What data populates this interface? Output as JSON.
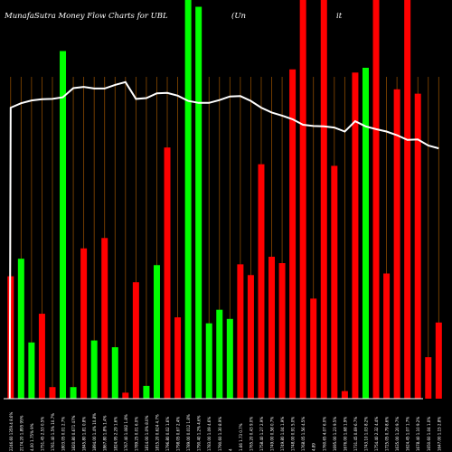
{
  "header": {
    "title": "MunafaSutra  Money Flow  Charts for UBL",
    "subtitle": "(Un",
    "suffix": "it"
  },
  "colors": {
    "background": "#000000",
    "up": "#00ff00",
    "down": "#ff0000",
    "gridline": "#8a4a00",
    "line": "#ffffff",
    "axis": "#ffffff",
    "text": "#ffffff"
  },
  "chart_data": {
    "type": "bar",
    "title": "MunafaSutra  Money Flow  Charts for UBL",
    "ylim": [
      0,
      100
    ],
    "grid": true,
    "legend": "none",
    "categories": [
      "2246.60 1359.4 8.6%",
      "2174.20 1.895 95%",
      "4.00 1.75% 9%",
      "1751.45 2.53 0.5%",
      "1761.40 1.5% 10.7%",
      "1803.05 0.01 2.7%",
      "1820.80 0.671 47%",
      "1845.80 1.81 0.8%",
      "1894.00 1.4% 10.8%",
      "1867.80 1.8% 1.4%",
      "1824.95 2.29 1.6%",
      "1767.40 1.082 1.8%",
      "1789.25 0.01 6.0%",
      "1814.00 1.0% 8.0%",
      "1815.20 0.624 4.7%",
      "1796.80 0.02 1.6%",
      "1798.05 0.67 2.4%",
      "1789.00 0.012 1.8%",
      "1790.40 1.2% 4.6%",
      "1783.00 1.09 4.6%",
      "1790.60 1.30 8.9%",
      "4",
      "1.66 1.73 0.7%",
      "1765.20 0.43 9.0%",
      "1758.40 1.27 2.9%",
      "1749.00 0.58 0.7%",
      "1749.80 1.04 1.9%",
      "1748.00 0.91 5.0%",
      "1768.05 1.56 4.5%",
      "4.89",
      "1760.65 4.07 6.0%",
      "1695.00 1.23 9.5%",
      "1676.00 1.68 1.9%",
      "1731.45 0.69 6.7%",
      "1743.10 1.03 8.2%",
      "1754.40 2.32 4.4%",
      "1725.05 0.79 8.6%",
      "1635.00 1.20 9.7%",
      "1624.45 1.07 1.7%",
      "1678.40 1.10 9.2%",
      "1650.60 1.04 1.0%",
      "1647.00 1.15 2.8%"
    ],
    "series": [
      {
        "colors": [
          "red",
          "green",
          "green",
          "red",
          "red",
          "green",
          "green",
          "red",
          "green",
          "red",
          "green",
          "red",
          "red",
          "green",
          "green",
          "red",
          "red",
          "green",
          "green",
          "green",
          "green",
          "green",
          "red",
          "red",
          "red",
          "red",
          "red",
          "red",
          "red",
          "red",
          "red",
          "red",
          "red",
          "red",
          "green",
          "red",
          "red",
          "red",
          "red",
          "red",
          "red",
          "red"
        ],
        "values": [
          30.7,
          35.1,
          14.1,
          21.3,
          2.9,
          87.2,
          2.9,
          37.7,
          14.6,
          40.3,
          12.9,
          1.5,
          29.2,
          3.2,
          33.5,
          63.0,
          20.4,
          100,
          98.3,
          18.9,
          22.3,
          20.0,
          33.7,
          31.0,
          58.8,
          35.6,
          34.0,
          82.6,
          100,
          25.1,
          100,
          58.4,
          1.9,
          81.8,
          83.0,
          100,
          31.4,
          77.6,
          100,
          76.5,
          10.4,
          19.1
        ]
      }
    ],
    "line": {
      "values": [
        73.0,
        74.1,
        74.8,
        75.1,
        75.2,
        75.6,
        77.9,
        78.2,
        77.8,
        77.8,
        78.7,
        79.4,
        75.2,
        75.4,
        76.6,
        76.7,
        76.0,
        74.7,
        74.2,
        74.2,
        74.9,
        75.8,
        75.9,
        74.7,
        73.0,
        71.8,
        71.0,
        70.1,
        68.7,
        68.4,
        68.3,
        68.0,
        67.0,
        69.6,
        68.3,
        67.6,
        67.0,
        66.1,
        64.9,
        65.0,
        63.5,
        62.8
      ]
    }
  }
}
